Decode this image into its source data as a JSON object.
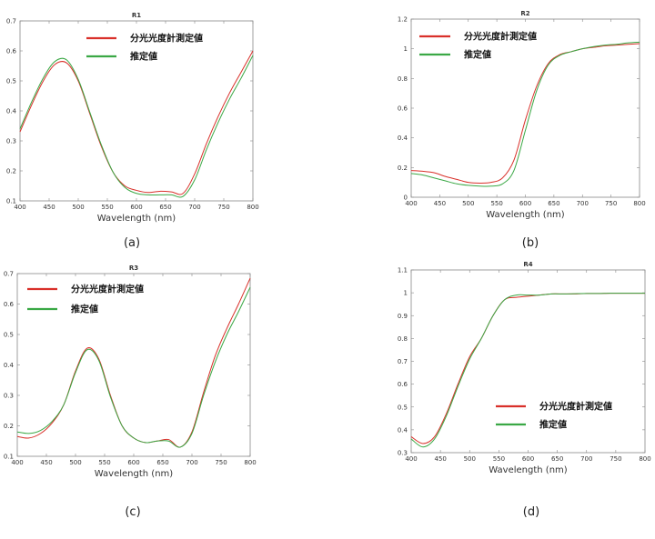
{
  "colors": {
    "measured": "#d9302a",
    "estimated": "#3aa845",
    "axis": "#888888"
  },
  "chart_data": [
    {
      "type": "line",
      "title": "R1",
      "caption": "(a)",
      "xlabel": "Wavelength (nm)",
      "ylabel": "",
      "xlim": [
        400,
        800
      ],
      "ylim": [
        0.1,
        0.7
      ],
      "xticks": [
        400,
        450,
        500,
        550,
        600,
        650,
        700,
        750,
        800
      ],
      "yticks": [
        0.1,
        0.2,
        0.3,
        0.4,
        0.5,
        0.6,
        0.7
      ],
      "ytick_labels": [
        "0.1",
        "0.2",
        "0.3",
        "0.4",
        "0.5",
        "0.6",
        "0.7"
      ],
      "legend_position": "top-center",
      "x": [
        400,
        420,
        440,
        460,
        480,
        500,
        520,
        540,
        560,
        580,
        600,
        620,
        640,
        660,
        680,
        700,
        720,
        740,
        760,
        780,
        800
      ],
      "series": [
        {
          "name": "分光光度計測定値",
          "color": "#d9302a",
          "values": [
            0.33,
            0.42,
            0.5,
            0.555,
            0.56,
            0.5,
            0.39,
            0.28,
            0.195,
            0.15,
            0.135,
            0.128,
            0.132,
            0.13,
            0.125,
            0.19,
            0.29,
            0.38,
            0.46,
            0.53,
            0.6
          ]
        },
        {
          "name": "推定値",
          "color": "#3aa845",
          "values": [
            0.34,
            0.43,
            0.51,
            0.565,
            0.57,
            0.505,
            0.395,
            0.285,
            0.195,
            0.145,
            0.125,
            0.12,
            0.12,
            0.12,
            0.115,
            0.17,
            0.27,
            0.36,
            0.44,
            0.51,
            0.585
          ]
        }
      ]
    },
    {
      "type": "line",
      "title": "R2",
      "caption": "(b)",
      "xlabel": "Wavelength (nm)",
      "ylabel": "",
      "xlim": [
        400,
        800
      ],
      "ylim": [
        0,
        1.2
      ],
      "xticks": [
        400,
        450,
        500,
        550,
        600,
        650,
        700,
        750,
        800
      ],
      "yticks": [
        0,
        0.2,
        0.4,
        0.6,
        0.8,
        1,
        1.2
      ],
      "ytick_labels": [
        "0",
        "0.2",
        "0.4",
        "0.6",
        "0.8",
        "1",
        "1.2"
      ],
      "legend_position": "top-left",
      "x": [
        400,
        420,
        440,
        460,
        480,
        500,
        520,
        540,
        560,
        580,
        600,
        620,
        640,
        660,
        680,
        700,
        720,
        740,
        760,
        780,
        800
      ],
      "series": [
        {
          "name": "分光光度計測定値",
          "color": "#d9302a",
          "values": [
            0.18,
            0.175,
            0.165,
            0.14,
            0.12,
            0.1,
            0.095,
            0.1,
            0.13,
            0.25,
            0.52,
            0.75,
            0.9,
            0.96,
            0.98,
            1.0,
            1.01,
            1.02,
            1.025,
            1.03,
            1.035
          ]
        },
        {
          "name": "推定値",
          "color": "#3aa845",
          "values": [
            0.16,
            0.15,
            0.13,
            0.11,
            0.09,
            0.08,
            0.075,
            0.075,
            0.09,
            0.18,
            0.45,
            0.72,
            0.89,
            0.955,
            0.98,
            1.0,
            1.015,
            1.025,
            1.03,
            1.04,
            1.045
          ]
        }
      ]
    },
    {
      "type": "line",
      "title": "R3",
      "caption": "(c)",
      "xlabel": "Wavelength (nm)",
      "ylabel": "",
      "xlim": [
        400,
        800
      ],
      "ylim": [
        0.1,
        0.7
      ],
      "xticks": [
        400,
        450,
        500,
        550,
        600,
        650,
        700,
        750,
        800
      ],
      "yticks": [
        0.1,
        0.2,
        0.3,
        0.4,
        0.5,
        0.6,
        0.7
      ],
      "ytick_labels": [
        "0.1",
        "0.2",
        "0.3",
        "0.4",
        "0.5",
        "0.6",
        "0.7"
      ],
      "legend_position": "top-left",
      "x": [
        400,
        420,
        440,
        460,
        480,
        500,
        520,
        540,
        560,
        580,
        600,
        620,
        640,
        660,
        680,
        700,
        720,
        740,
        760,
        780,
        800
      ],
      "series": [
        {
          "name": "分光光度計測定値",
          "color": "#d9302a",
          "values": [
            0.165,
            0.16,
            0.175,
            0.21,
            0.27,
            0.38,
            0.455,
            0.42,
            0.3,
            0.2,
            0.16,
            0.145,
            0.15,
            0.155,
            0.13,
            0.18,
            0.31,
            0.43,
            0.52,
            0.6,
            0.685
          ]
        },
        {
          "name": "推定値",
          "color": "#3aa845",
          "values": [
            0.18,
            0.175,
            0.185,
            0.215,
            0.27,
            0.375,
            0.45,
            0.415,
            0.295,
            0.2,
            0.16,
            0.145,
            0.15,
            0.15,
            0.13,
            0.175,
            0.3,
            0.41,
            0.5,
            0.575,
            0.655
          ]
        }
      ]
    },
    {
      "type": "line",
      "title": "R4",
      "caption": "(d)",
      "xlabel": "Wavelength (nm)",
      "ylabel": "",
      "xlim": [
        400,
        800
      ],
      "ylim": [
        0.3,
        1.1
      ],
      "xticks": [
        400,
        450,
        500,
        550,
        600,
        650,
        700,
        750,
        800
      ],
      "yticks": [
        0.3,
        0.4,
        0.5,
        0.6,
        0.7,
        0.8,
        0.9,
        1,
        1.1
      ],
      "ytick_labels": [
        "0.3",
        "0.4",
        "0.5",
        "0.6",
        "0.7",
        "0.8",
        "0.9",
        "1",
        "1.1"
      ],
      "legend_position": "bottom-right",
      "x": [
        400,
        420,
        440,
        460,
        480,
        500,
        520,
        540,
        560,
        580,
        600,
        620,
        640,
        660,
        680,
        700,
        720,
        740,
        760,
        780,
        800
      ],
      "series": [
        {
          "name": "分光光度計測定値",
          "color": "#d9302a",
          "values": [
            0.37,
            0.34,
            0.37,
            0.47,
            0.6,
            0.72,
            0.8,
            0.9,
            0.97,
            0.98,
            0.985,
            0.99,
            0.995,
            0.995,
            0.995,
            0.997,
            0.997,
            0.998,
            0.998,
            0.998,
            0.998
          ]
        },
        {
          "name": "推定値",
          "color": "#3aa845",
          "values": [
            0.36,
            0.325,
            0.36,
            0.46,
            0.59,
            0.71,
            0.8,
            0.9,
            0.97,
            0.99,
            0.99,
            0.99,
            0.995,
            0.995,
            0.996,
            0.997,
            0.997,
            0.998,
            0.998,
            0.998,
            0.998
          ]
        }
      ]
    }
  ]
}
